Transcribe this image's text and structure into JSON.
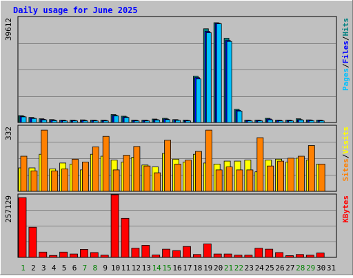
{
  "chart_data": {
    "type": "bar",
    "title": "Daily usage for June 2025",
    "days": [
      "1",
      "2",
      "3",
      "4",
      "5",
      "6",
      "7",
      "8",
      "9",
      "10",
      "11",
      "12",
      "13",
      "14",
      "15",
      "16",
      "17",
      "18",
      "19",
      "20",
      "21",
      "22",
      "23",
      "24",
      "25",
      "26",
      "27",
      "28",
      "29",
      "30",
      "31"
    ],
    "weekend_days": [
      "1",
      "7",
      "8",
      "14",
      "15",
      "21",
      "22",
      "28",
      "29"
    ],
    "panels": [
      {
        "name": "hits-panel",
        "ymax_label": "39612",
        "ymax": 39612,
        "legend": [
          "Pages",
          "/",
          "Files",
          "/",
          "Hits"
        ],
        "legend_colors": [
          "#00c0ff",
          "#000000",
          "#0000ff",
          "#000000",
          "#008080"
        ],
        "series": [
          {
            "name": "Hits",
            "color": "#008080",
            "values": [
              2600,
              1900,
              1400,
              1100,
              900,
              900,
              1000,
              900,
              900,
              3000,
              2400,
              900,
              900,
              1300,
              1600,
              1100,
              900,
              17500,
              35500,
              37800,
              31900,
              5000,
              900,
              900,
              1600,
              900,
              900,
              1400,
              1000,
              900,
              0
            ]
          },
          {
            "name": "Files",
            "color": "#0000ff",
            "values": [
              2300,
              1700,
              1200,
              900,
              800,
              800,
              800,
              800,
              800,
              2700,
              2100,
              800,
              800,
              1100,
              1300,
              1000,
              800,
              17000,
              34500,
              37600,
              31100,
              4600,
              800,
              800,
              1300,
              800,
              800,
              1100,
              900,
              800,
              0
            ]
          },
          {
            "name": "Pages",
            "color": "#00c0ff",
            "values": [
              2100,
              1500,
              1000,
              700,
              600,
              600,
              600,
              600,
              600,
              2500,
              1900,
              600,
              600,
              900,
              1100,
              800,
              600,
              16500,
              34000,
              37400,
              30700,
              4300,
              600,
              600,
              1000,
              600,
              600,
              900,
              700,
              600,
              0
            ]
          }
        ]
      },
      {
        "name": "visits-panel",
        "ymax_label": "332",
        "ymax": 332,
        "legend": [
          "Sites",
          "/",
          "Visits"
        ],
        "legend_colors": [
          "#ff8000",
          "#000000",
          "#ffff00"
        ],
        "series": [
          {
            "name": "Visits",
            "color": "#ffff00",
            "values": [
              120,
              120,
              190,
              115,
              145,
              140,
              110,
              190,
              180,
              160,
              150,
              175,
              135,
              125,
              195,
              165,
              150,
              190,
              145,
              140,
              155,
              155,
              160,
              100,
              160,
              165,
              150,
              170,
              160,
              140,
              0
            ]
          },
          {
            "name": "Sites",
            "color": "#ff8000",
            "values": [
              180,
              105,
              314,
              105,
              115,
              165,
              150,
              228,
              282,
              110,
              185,
              230,
              130,
              95,
              262,
              140,
              160,
              205,
              314,
              110,
              125,
              110,
              110,
              275,
              130,
              155,
              170,
              180,
              235,
              140,
              0
            ]
          }
        ]
      },
      {
        "name": "kbytes-panel",
        "ymax_label": "257129",
        "ymax": 257129,
        "legend": [
          "KBytes"
        ],
        "legend_colors": [
          "#ff0000"
        ],
        "series": [
          {
            "name": "KBytes",
            "color": "#ff0000",
            "values": [
              248000,
              125000,
              22000,
              8000,
              22000,
              14000,
              33000,
              20000,
              9000,
              260000,
              162000,
              38000,
              50000,
              10000,
              34000,
              28000,
              45000,
              12000,
              56000,
              14000,
              14000,
              9000,
              9000,
              38000,
              34000,
              20000,
              7000,
              12000,
              9000,
              18000,
              0
            ]
          }
        ]
      }
    ]
  }
}
